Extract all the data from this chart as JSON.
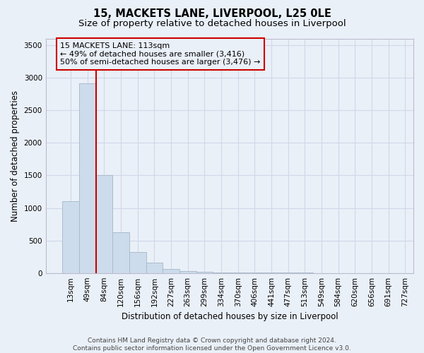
{
  "title": "15, MACKETS LANE, LIVERPOOL, L25 0LE",
  "subtitle": "Size of property relative to detached houses in Liverpool",
  "xlabel": "Distribution of detached houses by size in Liverpool",
  "ylabel": "Number of detached properties",
  "bar_values": [
    1100,
    2920,
    1500,
    630,
    320,
    155,
    60,
    30,
    15,
    10,
    5,
    4,
    3,
    2,
    2,
    1,
    1,
    1,
    1,
    1
  ],
  "bar_labels": [
    "13sqm",
    "49sqm",
    "84sqm",
    "120sqm",
    "156sqm",
    "192sqm",
    "227sqm",
    "263sqm",
    "299sqm",
    "334sqm",
    "370sqm",
    "406sqm",
    "441sqm",
    "477sqm",
    "513sqm",
    "549sqm",
    "584sqm",
    "620sqm",
    "656sqm",
    "691sqm",
    "727sqm"
  ],
  "bar_color": "#ccdcec",
  "bar_edge_color": "#aabccc",
  "grid_color": "#d0d8e8",
  "background_color": "#eaf0f8",
  "vline_color": "#cc0000",
  "annotation_text": "15 MACKETS LANE: 113sqm\n← 49% of detached houses are smaller (3,416)\n50% of semi-detached houses are larger (3,476) →",
  "annotation_box_edge": "#cc0000",
  "ylim": [
    0,
    3600
  ],
  "yticks": [
    0,
    500,
    1000,
    1500,
    2000,
    2500,
    3000,
    3500
  ],
  "footer": "Contains HM Land Registry data © Crown copyright and database right 2024.\nContains public sector information licensed under the Open Government Licence v3.0.",
  "title_fontsize": 10.5,
  "subtitle_fontsize": 9.5,
  "xlabel_fontsize": 8.5,
  "ylabel_fontsize": 8.5,
  "tick_fontsize": 7.5,
  "annotation_fontsize": 8,
  "footer_fontsize": 6.5
}
